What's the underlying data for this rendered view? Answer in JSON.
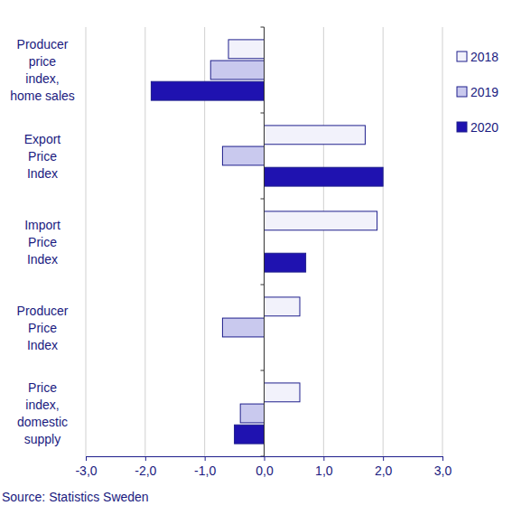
{
  "chart_data": {
    "type": "bar",
    "orientation": "horizontal",
    "categories": [
      "Producer\nprice\nindex,\nhome sales",
      "Export\nPrice\nIndex",
      "Import\nPrice\nIndex",
      "Producer\nPrice\nIndex",
      "Price\nindex,\ndomestic\nsupply"
    ],
    "series": [
      {
        "name": "2018",
        "color": "#f2f2fb",
        "values": [
          -0.6,
          1.7,
          1.9,
          0.6,
          0.6
        ]
      },
      {
        "name": "2019",
        "color": "#c9c9ee",
        "values": [
          -0.9,
          -0.7,
          0.0,
          -0.7,
          -0.4
        ]
      },
      {
        "name": "2020",
        "color": "#1f12b0",
        "values": [
          -1.9,
          2.0,
          0.7,
          0.0,
          -0.5
        ]
      }
    ],
    "xlim": [
      -3,
      3
    ],
    "xticks": [
      {
        "value": -3,
        "label": "-3,0"
      },
      {
        "value": -2,
        "label": "-2,0"
      },
      {
        "value": -1,
        "label": "-1,0"
      },
      {
        "value": 0,
        "label": "0,0"
      },
      {
        "value": 1,
        "label": "1,0"
      },
      {
        "value": 2,
        "label": "2,0"
      },
      {
        "value": 3,
        "label": "3,0"
      }
    ],
    "grid": true,
    "legend": "upper right",
    "source": "Source: Statistics Sweden"
  }
}
